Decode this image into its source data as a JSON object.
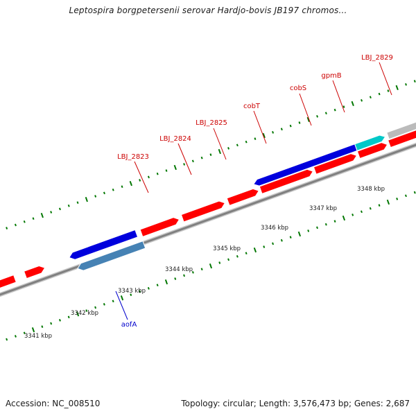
{
  "title": "Leptospira borgpetersenii serovar Hardjo-bovis JB197 chromos...",
  "footer": {
    "accession": "Accession: NC_008510",
    "summary": "Topology: circular; Length: 3,576,473 bp; Genes: 2,687"
  },
  "colors": {
    "cds": "#ff0000",
    "highlighted": "#0000dd",
    "highlighted_light": "#4682b4",
    "rna": "#00c8c8",
    "other": "#bbbbbb",
    "backbone": "#808080",
    "ticks": "#007700",
    "gene_label": "#cc0000",
    "gene_label_blue": "#0000cc"
  },
  "kbp_labels": [
    "3341 kbp",
    "3342 kbp",
    "3343 kbp",
    "3344 kbp",
    "3345 kbp",
    "3346 kbp",
    "3347 kbp",
    "3348 kbp"
  ],
  "gene_labels": [
    "LBJ_2823",
    "LBJ_2824",
    "LBJ_2825",
    "cobT",
    "cobS",
    "gpmB",
    "LBJ_2829",
    "aofA"
  ]
}
